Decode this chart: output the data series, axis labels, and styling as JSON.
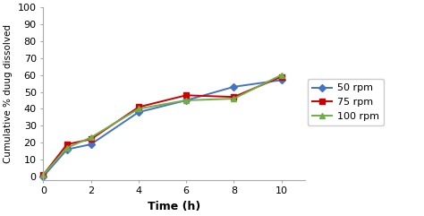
{
  "time": [
    0,
    1,
    2,
    4,
    6,
    8,
    10
  ],
  "rpm50": [
    0,
    16,
    19,
    38,
    45,
    53,
    57
  ],
  "rpm75": [
    1,
    19,
    22,
    41,
    48,
    47,
    59
  ],
  "rpm100": [
    1,
    17,
    23,
    40,
    45,
    46,
    60
  ],
  "series": [
    {
      "label": "50 rpm",
      "color": "#4472C4",
      "marker": "D",
      "markersize": 4
    },
    {
      "label": "75 rpm",
      "color": "#CC0000",
      "marker": "s",
      "markersize": 4
    },
    {
      "label": "100 rpm",
      "color": "#70AD47",
      "marker": "^",
      "markersize": 5
    }
  ],
  "xlabel": "Time (h)",
  "ylabel": "Cumulative % duug dissolved",
  "xlim": [
    0,
    11
  ],
  "ylim": [
    -2,
    100
  ],
  "xticks": [
    0,
    2,
    4,
    6,
    8,
    10
  ],
  "yticks": [
    0,
    10,
    20,
    30,
    40,
    50,
    60,
    70,
    80,
    90,
    100
  ],
  "bg_color": "#FFFFFF",
  "linewidth": 1.4,
  "tick_fontsize": 8,
  "label_fontsize": 9,
  "legend_fontsize": 8
}
